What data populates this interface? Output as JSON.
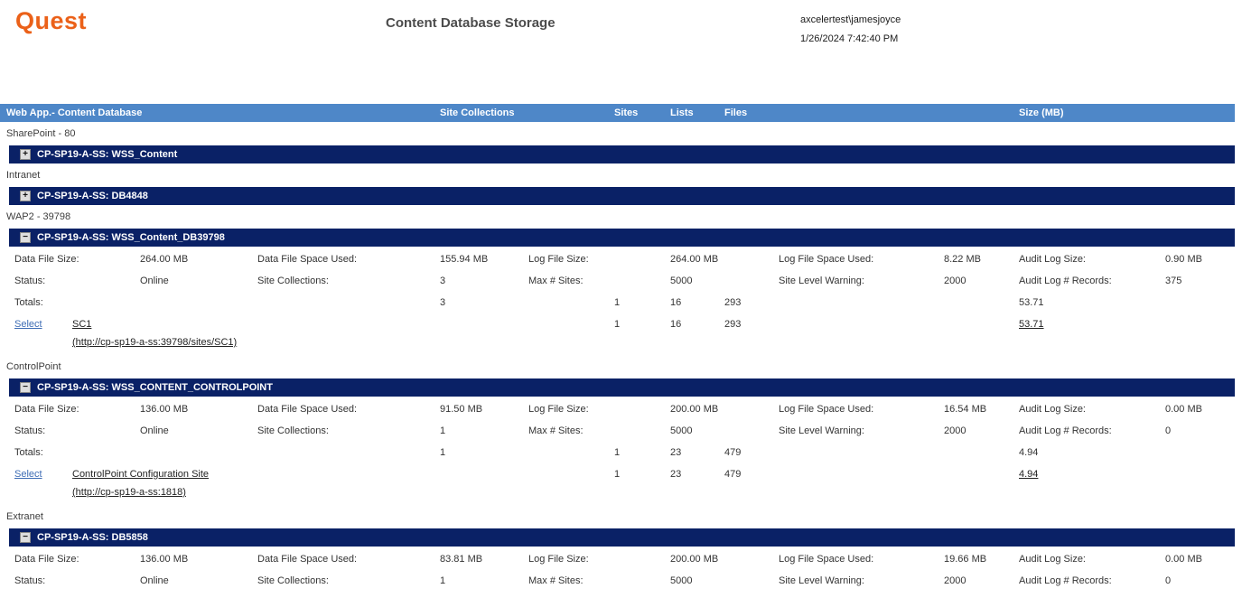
{
  "page": {
    "logo_text": "Quest",
    "title": "Content Database Storage",
    "user": "axcelertest\\jamesjoyce",
    "timestamp": "1/26/2024 7:42:40 PM"
  },
  "colors": {
    "logo_orange": "#EB6119",
    "header_blue": "#4E87C8",
    "bar_navy": "#0A2166",
    "link_blue": "#3E6DB5"
  },
  "table_header": {
    "webapp": "Web App.- Content Database",
    "site_collections": "Site Collections",
    "sites": "Sites",
    "lists": "Lists",
    "files": "Files",
    "size_mb": "Size (MB)"
  },
  "sections": [
    {
      "group_label": "SharePoint - 80",
      "db_name": "CP-SP19-A-SS: WSS_Content",
      "toggle": "+"
    },
    {
      "group_label": "Intranet",
      "db_name": "CP-SP19-A-SS: DB4848",
      "toggle": "+"
    },
    {
      "group_label": "WAP2 - 39798",
      "db_name": "CP-SP19-A-SS: WSS_Content_DB39798",
      "toggle": "−",
      "stat_rows": [
        [
          {
            "label": "Data File Size:",
            "value": "264.00 MB"
          },
          {
            "label": "Data File Space Used:",
            "value": "155.94 MB"
          },
          {
            "label": "Log File Size:",
            "value": "264.00 MB"
          },
          {
            "label": "Log File Space Used:",
            "value": "8.22 MB"
          },
          {
            "label": "Audit Log Size:",
            "value": "0.90 MB"
          }
        ],
        [
          {
            "label": "Status:",
            "value": "Online"
          },
          {
            "label": "Site Collections:",
            "value": "3"
          },
          {
            "label": "Max # Sites:",
            "value": "5000"
          },
          {
            "label": "Site Level Warning:",
            "value": "2000"
          },
          {
            "label": "Audit Log # Records:",
            "value": "375"
          }
        ]
      ],
      "totals": {
        "label": "Totals:",
        "site_collections": "3",
        "sites": "1",
        "lists": "16",
        "files": "293",
        "size": "53.71"
      },
      "site": {
        "select_label": "Select",
        "name": "SC1",
        "url": "(http://cp-sp19-a-ss:39798/sites/SC1)",
        "sites": "1",
        "lists": "16",
        "files": "293",
        "size": "53.71"
      }
    },
    {
      "group_label": "ControlPoint",
      "db_name": "CP-SP19-A-SS: WSS_CONTENT_CONTROLPOINT",
      "toggle": "−",
      "stat_rows": [
        [
          {
            "label": "Data File Size:",
            "value": "136.00 MB"
          },
          {
            "label": "Data File Space Used:",
            "value": "91.50 MB"
          },
          {
            "label": "Log File Size:",
            "value": "200.00 MB"
          },
          {
            "label": "Log File Space Used:",
            "value": "16.54 MB"
          },
          {
            "label": "Audit Log Size:",
            "value": "0.00 MB"
          }
        ],
        [
          {
            "label": "Status:",
            "value": "Online"
          },
          {
            "label": "Site Collections:",
            "value": "1"
          },
          {
            "label": "Max # Sites:",
            "value": "5000"
          },
          {
            "label": "Site Level Warning:",
            "value": "2000"
          },
          {
            "label": "Audit Log # Records:",
            "value": "0"
          }
        ]
      ],
      "totals": {
        "label": "Totals:",
        "site_collections": "1",
        "sites": "1",
        "lists": "23",
        "files": "479",
        "size": "4.94"
      },
      "site": {
        "select_label": "Select",
        "name": "ControlPoint Configuration Site",
        "url": "(http://cp-sp19-a-ss:1818)",
        "sites": "1",
        "lists": "23",
        "files": "479",
        "size": "4.94"
      }
    },
    {
      "group_label": "Extranet",
      "db_name": "CP-SP19-A-SS: DB5858",
      "toggle": "−",
      "stat_rows": [
        [
          {
            "label": "Data File Size:",
            "value": "136.00 MB"
          },
          {
            "label": "Data File Space Used:",
            "value": "83.81 MB"
          },
          {
            "label": "Log File Size:",
            "value": "200.00 MB"
          },
          {
            "label": "Log File Space Used:",
            "value": "19.66 MB"
          },
          {
            "label": "Audit Log Size:",
            "value": "0.00 MB"
          }
        ],
        [
          {
            "label": "Status:",
            "value": "Online"
          },
          {
            "label": "Site Collections:",
            "value": "1"
          },
          {
            "label": "Max # Sites:",
            "value": "5000"
          },
          {
            "label": "Site Level Warning:",
            "value": "2000"
          },
          {
            "label": "Audit Log # Records:",
            "value": "0"
          }
        ]
      ]
    }
  ]
}
